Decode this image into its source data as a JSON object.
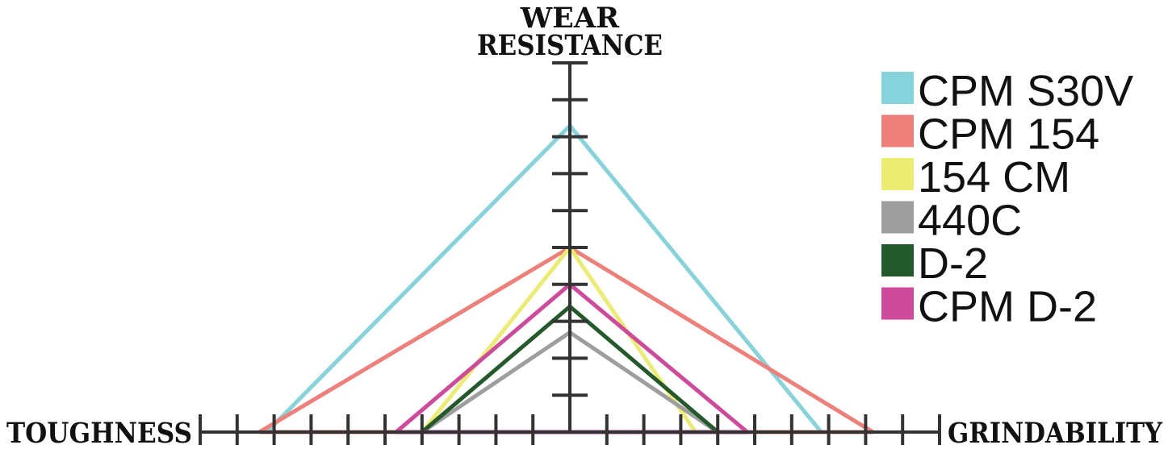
{
  "chart_data": {
    "type": "radar",
    "axes": [
      {
        "key": "wear_resistance",
        "title_lines": [
          "WEAR",
          "RESISTANCE"
        ]
      },
      {
        "key": "toughness",
        "title_lines": [
          "TOUGHNESS"
        ]
      },
      {
        "key": "grindability",
        "title_lines": [
          "GRINDABILITY"
        ]
      }
    ],
    "scale": {
      "min": 0,
      "max": 10,
      "ticks": 10
    },
    "series": [
      {
        "name": "CPM S30V",
        "color": "#86d3dc",
        "values": {
          "wear_resistance": 8.3,
          "toughness": 8.2,
          "grindability": 6.8
        }
      },
      {
        "name": "CPM 154",
        "color": "#ee7f7a",
        "values": {
          "wear_resistance": 5.0,
          "toughness": 8.4,
          "grindability": 8.2
        }
      },
      {
        "name": "154 CM",
        "color": "#ecec73",
        "values": {
          "wear_resistance": 5.0,
          "toughness": 4.0,
          "grindability": 3.4
        }
      },
      {
        "name": "440C",
        "color": "#9e9e9e",
        "values": {
          "wear_resistance": 2.7,
          "toughness": 4.0,
          "grindability": 4.0
        }
      },
      {
        "name": "D-2",
        "color": "#24592b",
        "values": {
          "wear_resistance": 3.4,
          "toughness": 4.0,
          "grindability": 4.0
        }
      },
      {
        "name": "CPM D-2",
        "color": "#d04a9c",
        "values": {
          "wear_resistance": 4.0,
          "toughness": 4.7,
          "grindability": 4.8
        }
      }
    ],
    "legend": "top-right"
  }
}
